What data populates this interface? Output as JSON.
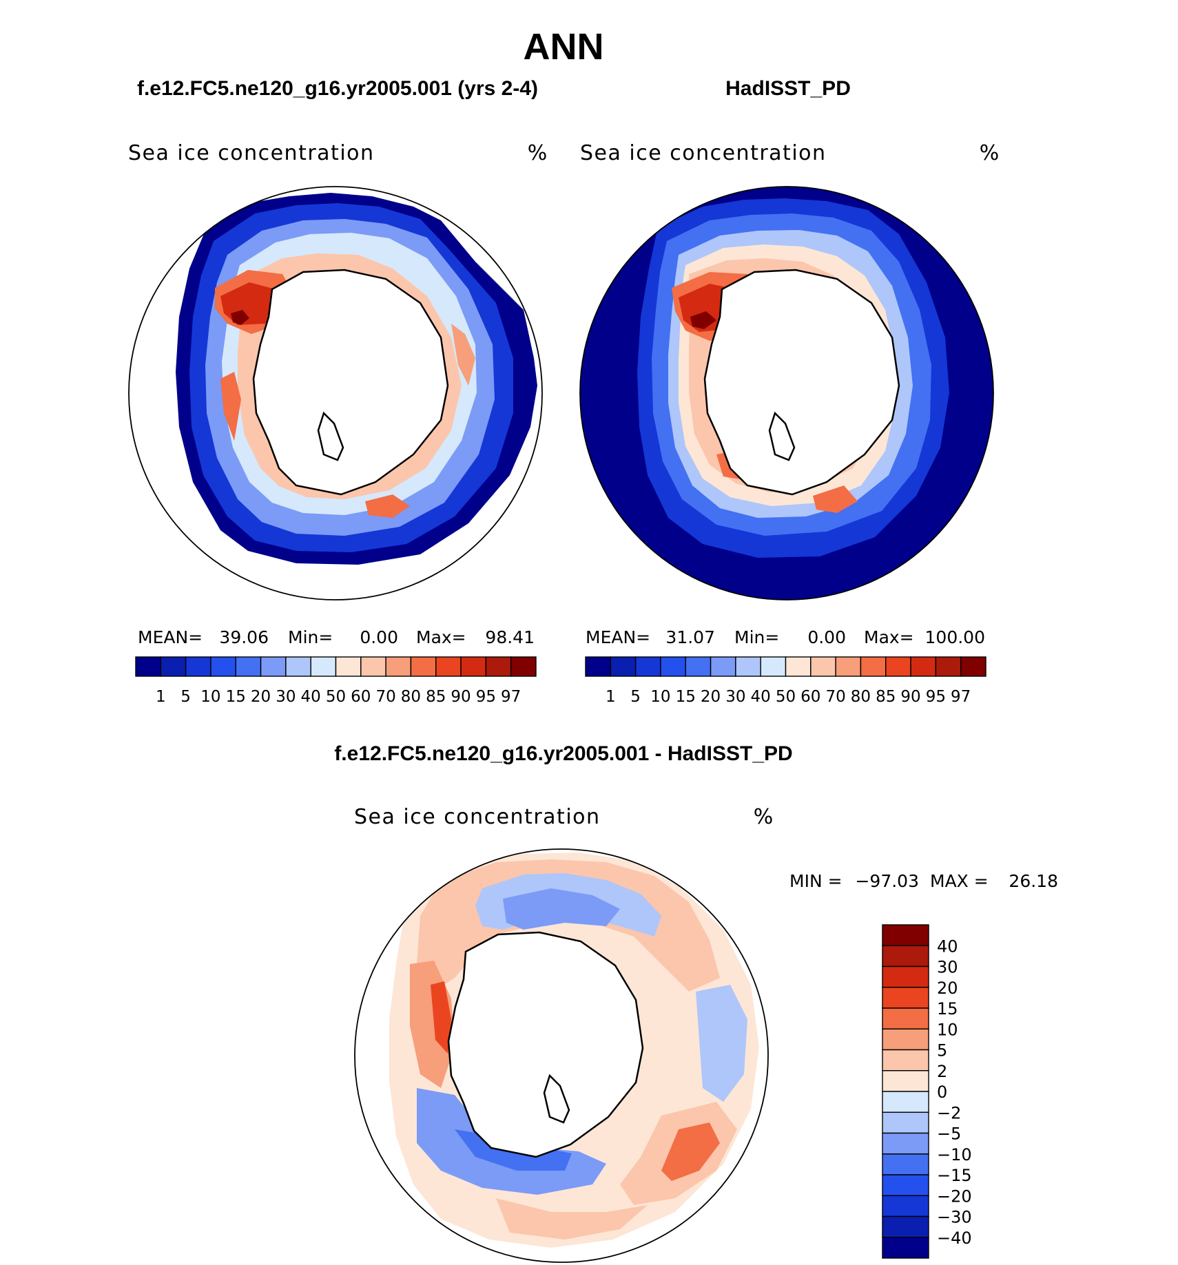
{
  "chart_data": {
    "type": "heatmap",
    "title": "ANN",
    "panels": [
      {
        "id": "model",
        "title": "f.e12.FC5.ne120_g16.yr2005.001 (yrs 2-4)",
        "variable": "Sea ice concentration",
        "units": "%",
        "stats": {
          "mean_label": "MEAN=",
          "mean": "39.06",
          "min_label": "Min=",
          "min": "0.00",
          "max_label": "Max=",
          "max": "98.41"
        },
        "levels": [
          "1",
          "5",
          "10",
          "15",
          "20",
          "30",
          "40",
          "50",
          "60",
          "70",
          "80",
          "85",
          "90",
          "95",
          "97"
        ],
        "colors": [
          "#00008a",
          "#0a1fb0",
          "#1537d6",
          "#2450ee",
          "#4470f2",
          "#7b9bf6",
          "#aec6fa",
          "#d6e8fb",
          "#fde6d6",
          "#fbc6ac",
          "#f79e7b",
          "#f36d45",
          "#ea4520",
          "#d42a12",
          "#ab1a0a",
          "#800000"
        ]
      },
      {
        "id": "obs",
        "title": "HadISST_PD",
        "variable": "Sea ice concentration",
        "units": "%",
        "stats": {
          "mean_label": "MEAN=",
          "mean": "31.07",
          "min_label": "Min=",
          "min": "0.00",
          "max_label": "Max=",
          "max": "100.00"
        },
        "levels": [
          "1",
          "5",
          "10",
          "15",
          "20",
          "30",
          "40",
          "50",
          "60",
          "70",
          "80",
          "85",
          "90",
          "95",
          "97"
        ],
        "colors": [
          "#00008a",
          "#0a1fb0",
          "#1537d6",
          "#2450ee",
          "#4470f2",
          "#7b9bf6",
          "#aec6fa",
          "#d6e8fb",
          "#fde6d6",
          "#fbc6ac",
          "#f79e7b",
          "#f36d45",
          "#ea4520",
          "#d42a12",
          "#ab1a0a",
          "#800000"
        ]
      },
      {
        "id": "diff",
        "title": "f.e12.FC5.ne120_g16.yr2005.001 - HadISST_PD",
        "variable": "Sea ice concentration",
        "units": "%",
        "stats": {
          "min_label": "MIN =",
          "min": "−97.03",
          "max_label": "MAX =",
          "max": "26.18"
        },
        "levels": [
          "40",
          "30",
          "20",
          "15",
          "10",
          "5",
          "2",
          "0",
          "−2",
          "−5",
          "−10",
          "−15",
          "−20",
          "−30",
          "−40"
        ],
        "colors": [
          "#800000",
          "#ab1a0a",
          "#d42a12",
          "#ea4520",
          "#f36d45",
          "#f79e7b",
          "#fbc6ac",
          "#fde6d6",
          "#d6e8fb",
          "#aec6fa",
          "#7b9bf6",
          "#4470f2",
          "#2450ee",
          "#1537d6",
          "#0a1fb0",
          "#00008a"
        ]
      }
    ]
  }
}
